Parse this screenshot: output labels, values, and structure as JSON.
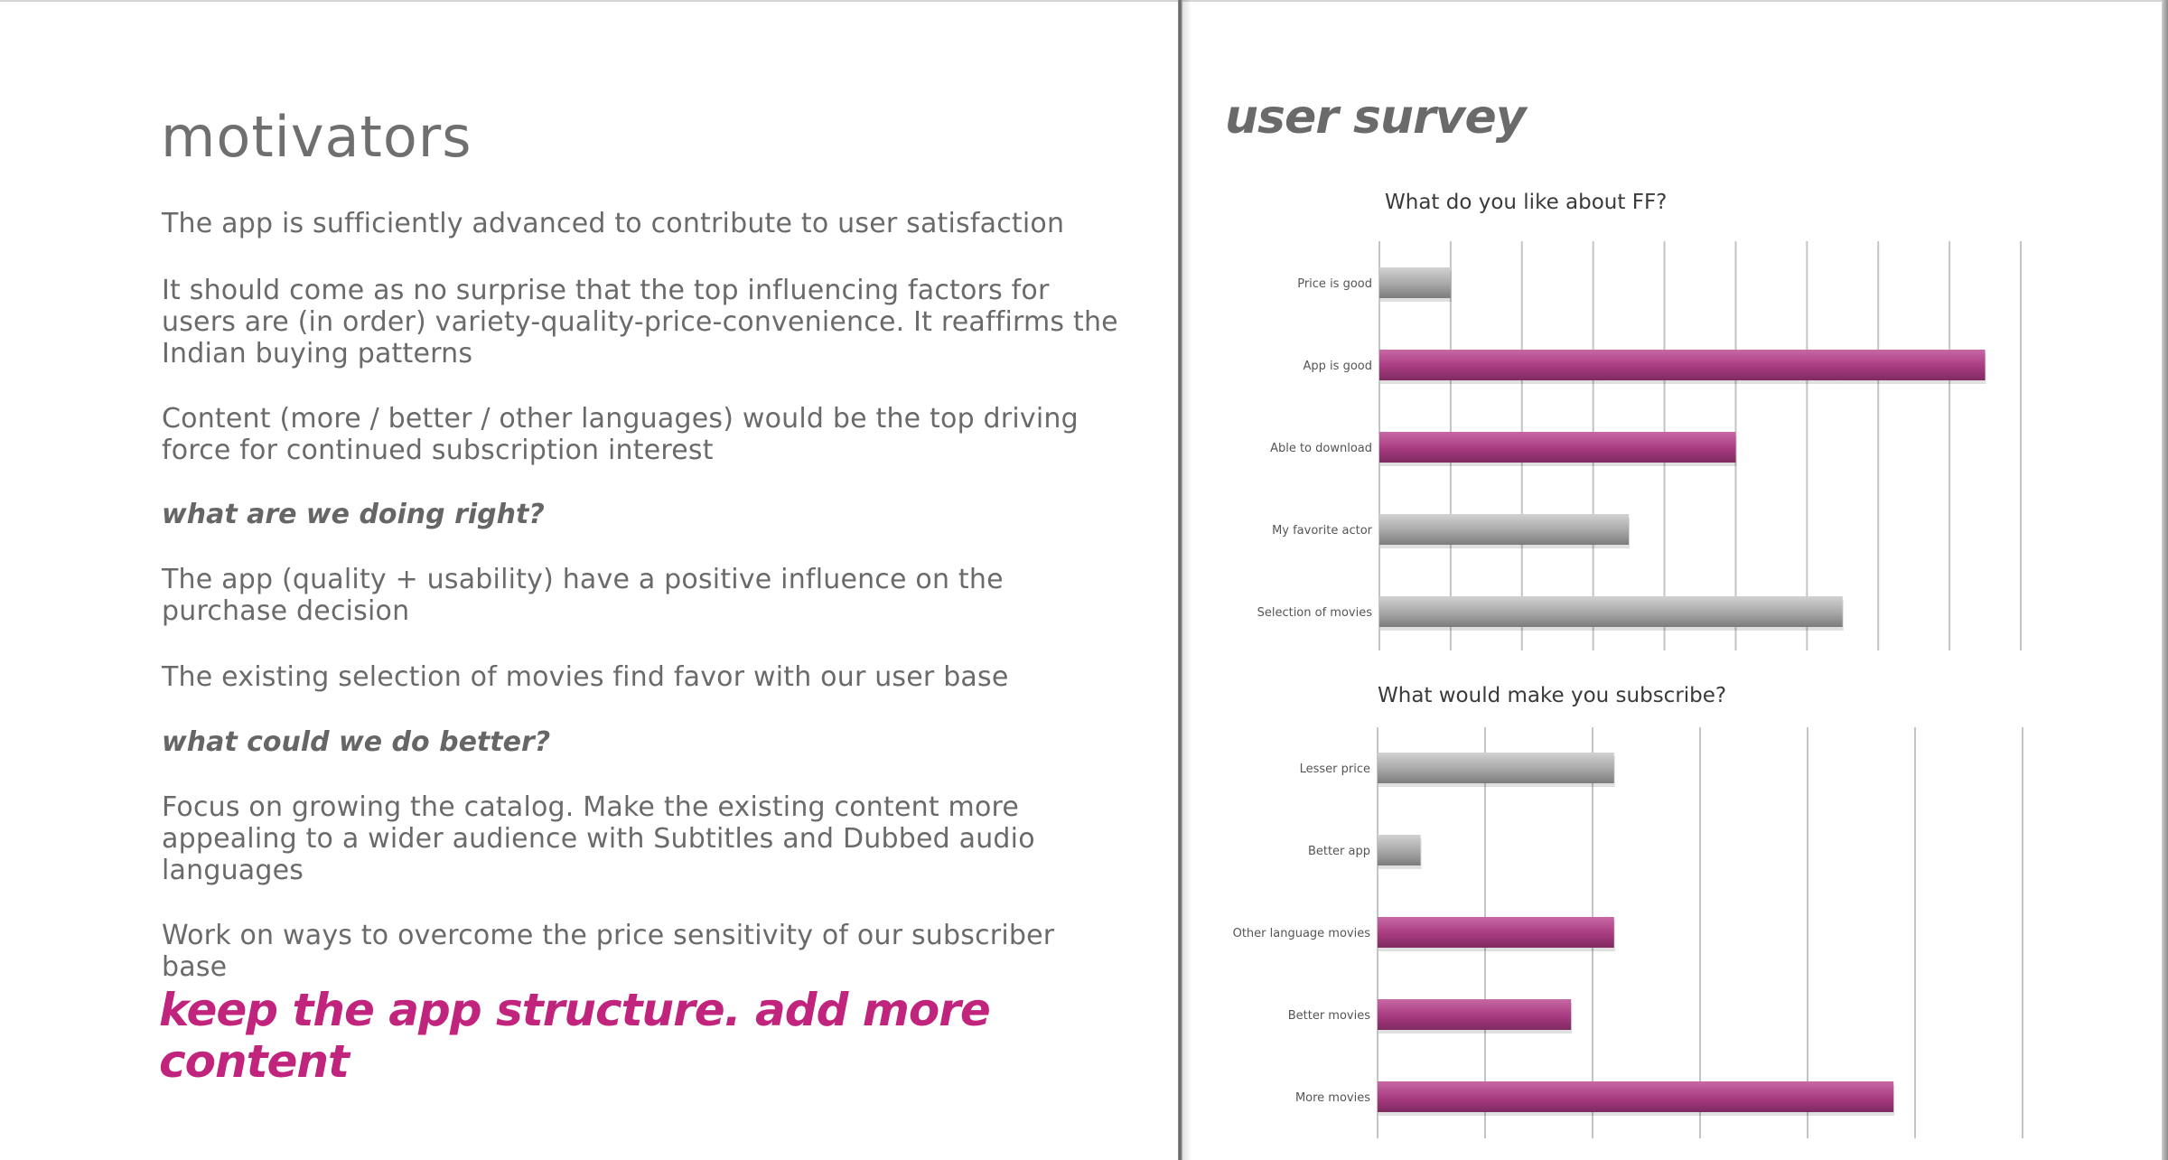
{
  "left_page": {
    "title": "motivators",
    "paragraphs": [
      "The app is sufficiently advanced to contribute to user satisfaction",
      "It should come as no surprise that the top influencing factors for users are (in order) variety-quality-price-convenience. It reaffirms the Indian buying patterns",
      "Content (more / better / other languages) would be the top driving force for continued subscription interest"
    ],
    "right_heading": "what are we doing right?",
    "right_points": [
      "The app (quality + usability) have a positive influence on the purchase decision",
      "The existing selection of movies find favor with our user base"
    ],
    "better_heading": "what could we do better?",
    "better_points": [
      "Focus on growing the catalog. Make the existing content more appealing to a wider audience with Subtitles and Dubbed audio languages",
      "Work on ways to overcome the price sensitivity of our subscriber base"
    ],
    "call_to_action": "keep the app structure. add more content"
  },
  "right_page": {
    "title": "user survey"
  },
  "colors": {
    "accent": "#c0247c",
    "bar_highlight": "#a83b80",
    "bar_neutral": "#a0a0a0",
    "text": "#6a6a6a"
  },
  "chart_data": [
    {
      "type": "bar",
      "orientation": "horizontal",
      "title": "What do you like about FF?",
      "categories": [
        "Price is good",
        "App is good",
        "Able to download",
        "My favorite actor",
        "Selection of movies"
      ],
      "values": [
        1,
        8.5,
        5,
        3.5,
        6.5
      ],
      "highlighted": [
        false,
        true,
        true,
        false,
        false
      ],
      "xlim": [
        0,
        9
      ],
      "grid": true,
      "legend": "none"
    },
    {
      "type": "bar",
      "orientation": "horizontal",
      "title": "What would make you subscribe?",
      "categories": [
        "Lesser price",
        "Better app",
        "Other language movies",
        "Better movies",
        "More movies"
      ],
      "values": [
        2.2,
        0.4,
        2.2,
        1.8,
        4.8
      ],
      "highlighted": [
        false,
        false,
        true,
        true,
        true
      ],
      "xlim": [
        0,
        6
      ],
      "grid": true,
      "legend": "none"
    }
  ]
}
